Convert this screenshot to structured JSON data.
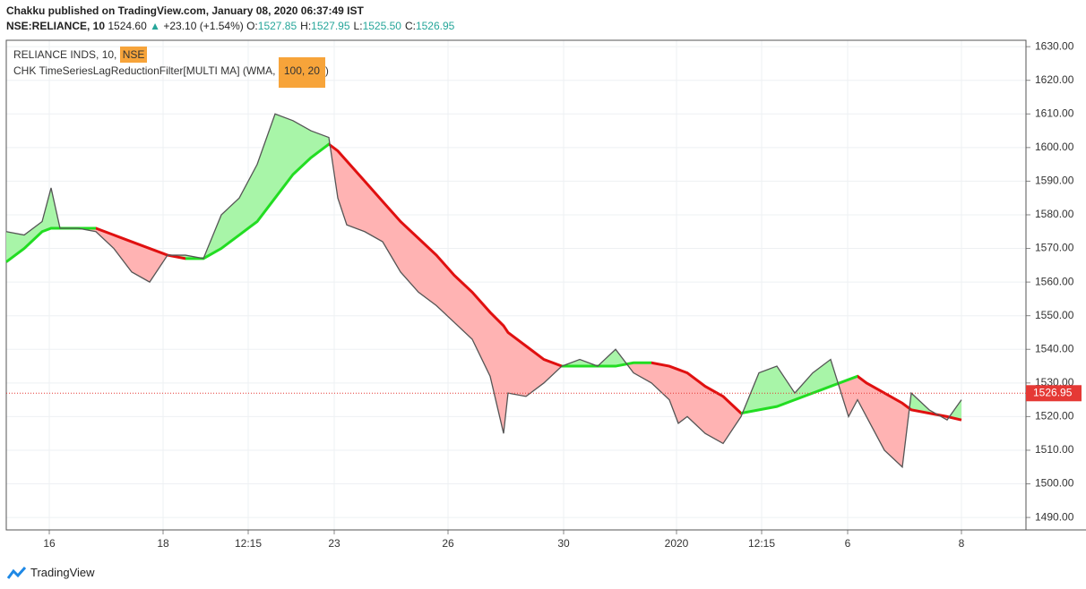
{
  "header": {
    "byline": "Chakku published on TradingView.com, January 08, 2020 06:37:49 IST",
    "symbol": "NSE:RELIANCE, 10",
    "last": "1524.60",
    "arrow": "▲",
    "change": "+23.10 (+1.54%)",
    "ohlc": [
      {
        "label": "O:",
        "value": "1527.85"
      },
      {
        "label": "H:",
        "value": "1527.95"
      },
      {
        "label": "L:",
        "value": "1525.50"
      },
      {
        "label": "C:",
        "value": "1526.95"
      }
    ]
  },
  "legend": {
    "name": "RELIANCE INDS, 10, ",
    "exchange": "NSE",
    "study": "CHK TimeSeriesLagReductionFilter[MULTI MA] (WMA, ",
    "params": "100, 20",
    "close": ")"
  },
  "footer": "TradingView",
  "chart_data": {
    "type": "line",
    "x": [
      0,
      2,
      4,
      5,
      6,
      8,
      10,
      12,
      14,
      16,
      18,
      20,
      22,
      24,
      26,
      28,
      30,
      32,
      34,
      36,
      37,
      38,
      40,
      42,
      44,
      46,
      48,
      50,
      52,
      54,
      55.5,
      56,
      58,
      60,
      62,
      64,
      66,
      68,
      70,
      72,
      74,
      75,
      76,
      78,
      80,
      82,
      84,
      86,
      88,
      90,
      92,
      94,
      95,
      96,
      98,
      100,
      101,
      103,
      105,
      106.6
    ],
    "series": [
      {
        "color": "#555555",
        "values": [
          1575,
          1574,
          1578,
          1588,
          1576,
          1576,
          1575,
          1570,
          1563,
          1560,
          1568,
          1568,
          1567,
          1580,
          1585,
          1595,
          1610,
          1608,
          1605,
          1603,
          1585,
          1577,
          1575,
          1572,
          1563,
          1557,
          1553,
          1548,
          1543,
          1532,
          1515,
          1527,
          1526,
          1530,
          1535,
          1537,
          1535,
          1540,
          1533,
          1530,
          1525,
          1518,
          1520,
          1515,
          1512,
          1520,
          1533,
          1535,
          1527,
          1533,
          1537,
          1520,
          1525,
          1520,
          1510,
          1505,
          1527,
          1522,
          1519,
          1525
        ]
      },
      {
        "up_color": "#22dd22",
        "down_color": "#e01010",
        "values": [
          1566,
          1570,
          1575,
          1576,
          1576,
          1576,
          1576,
          1574,
          1572,
          1570,
          1568,
          1567,
          1567,
          1570,
          1574,
          1578,
          1585,
          1592,
          1597,
          1601,
          1599,
          1596,
          1590,
          1584,
          1578,
          1573,
          1568,
          1562,
          1557,
          1551,
          1547,
          1545,
          1541,
          1537,
          1535,
          1535,
          1535,
          1535,
          1536,
          1536,
          1535,
          1534,
          1533,
          1529,
          1526,
          1521,
          1522,
          1523,
          1525,
          1527,
          1529,
          1531,
          1532,
          1530,
          1527,
          1524,
          1522,
          1521,
          1520,
          1519
        ]
      }
    ],
    "above_fill": "#a8f5a8",
    "below_fill": "#ffb3b3",
    "xlim": [
      0,
      113.8
    ],
    "xticks": [
      {
        "value": 4.8,
        "label": "16"
      },
      {
        "value": 17.5,
        "label": "18"
      },
      {
        "value": 27,
        "label": "12:15"
      },
      {
        "value": 36.6,
        "label": "23"
      },
      {
        "value": 49.3,
        "label": "26"
      },
      {
        "value": 62.2,
        "label": "30"
      },
      {
        "value": 74.8,
        "label": "2020"
      },
      {
        "value": 84.3,
        "label": "12:15"
      },
      {
        "value": 93.9,
        "label": "6"
      },
      {
        "value": 106.6,
        "label": "8"
      }
    ],
    "ylim": [
      1486.3,
      1631.9
    ],
    "yticks": [
      {
        "value": 1490,
        "label": "1490.00"
      },
      {
        "value": 1500,
        "label": "1500.00"
      },
      {
        "value": 1510,
        "label": "1510.00"
      },
      {
        "value": 1520,
        "label": "1520.00"
      },
      {
        "value": 1530,
        "label": "1530.00"
      },
      {
        "value": 1540,
        "label": "1540.00"
      },
      {
        "value": 1550,
        "label": "1550.00"
      },
      {
        "value": 1560,
        "label": "1560.00"
      },
      {
        "value": 1570,
        "label": "1570.00"
      },
      {
        "value": 1580,
        "label": "1580.00"
      },
      {
        "value": 1590,
        "label": "1590.00"
      },
      {
        "value": 1600,
        "label": "1600.00"
      },
      {
        "value": 1610,
        "label": "1610.00"
      },
      {
        "value": 1620,
        "label": "1620.00"
      },
      {
        "value": 1630,
        "label": "1630.00"
      }
    ],
    "grid": true,
    "last_price": {
      "value": 1526.95,
      "label": "1526.95",
      "color": "#e53935"
    }
  }
}
